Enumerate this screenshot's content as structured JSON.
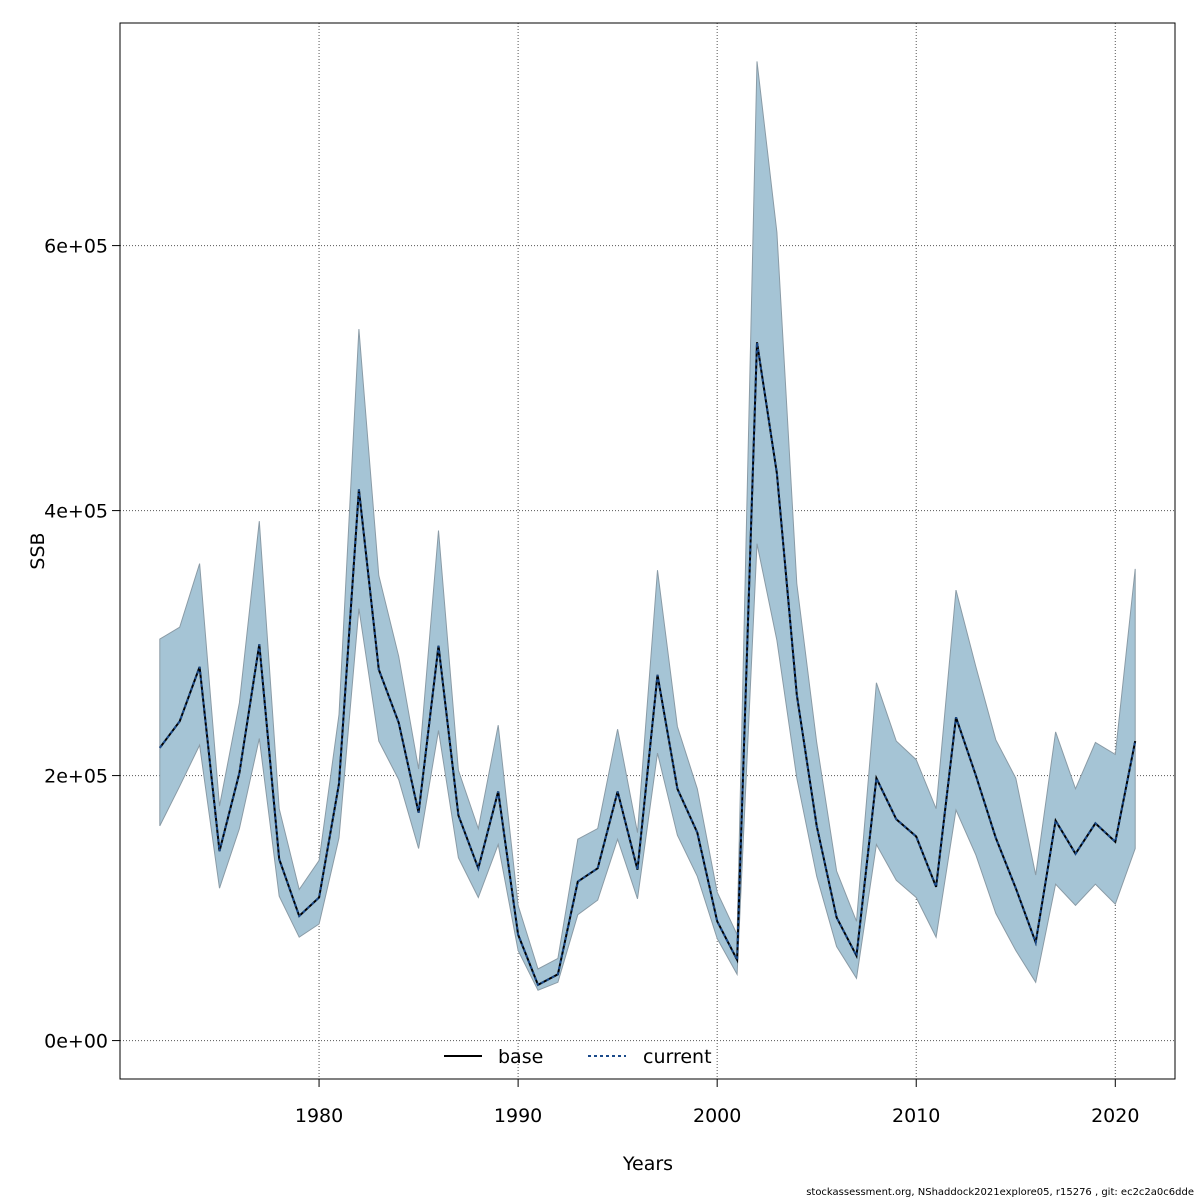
{
  "chart_data": {
    "type": "line",
    "xlabel": "Years",
    "ylabel": "SSB",
    "xlim": [
      1970.0,
      2023.0
    ],
    "ylim": [
      -29000,
      768000
    ],
    "x_ticks": [
      1980,
      1990,
      2000,
      2010,
      2020
    ],
    "x_tick_labels": [
      "1980",
      "1990",
      "2000",
      "2010",
      "2020"
    ],
    "y_ticks": [
      0,
      200000,
      400000,
      600000
    ],
    "y_tick_labels": [
      "0e+00",
      "2e+05",
      "4e+05",
      "6e+05"
    ],
    "grid": true,
    "legend": {
      "position": "bottom-center",
      "entries": [
        "base",
        "current"
      ]
    },
    "colors": {
      "band": "#a5c4d5",
      "band_edge": "#8a9ba6",
      "base": "#000000",
      "current": "#1a4a8a"
    },
    "x": [
      1972,
      1973,
      1974,
      1975,
      1976,
      1977,
      1978,
      1979,
      1980,
      1981,
      1982,
      1983,
      1984,
      1985,
      1986,
      1987,
      1988,
      1989,
      1990,
      1991,
      1992,
      1993,
      1994,
      1995,
      1996,
      1997,
      1998,
      1999,
      2000,
      2001,
      2002,
      2003,
      2004,
      2005,
      2006,
      2007,
      2008,
      2009,
      2010,
      2011,
      2012,
      2013,
      2014,
      2015,
      2016,
      2017,
      2018,
      2019,
      2020,
      2021
    ],
    "series": [
      {
        "name": "base",
        "values": [
          221000,
          241000,
          282000,
          143000,
          202000,
          299000,
          137000,
          94000,
          108000,
          194000,
          416000,
          280000,
          240000,
          172000,
          298000,
          170000,
          130000,
          188000,
          80000,
          42000,
          50000,
          120000,
          130000,
          188000,
          129000,
          276000,
          190000,
          157000,
          90000,
          61000,
          527000,
          428000,
          261000,
          162000,
          93000,
          64000,
          198000,
          167000,
          154000,
          116000,
          244000,
          200000,
          153000,
          115000,
          74000,
          166000,
          141000,
          164000,
          150000,
          226000
        ]
      },
      {
        "name": "current",
        "values": [
          221000,
          241000,
          282000,
          143000,
          202000,
          299000,
          137000,
          94000,
          108000,
          194000,
          416000,
          280000,
          240000,
          172000,
          298000,
          170000,
          130000,
          188000,
          80000,
          42000,
          50000,
          120000,
          130000,
          188000,
          129000,
          276000,
          190000,
          157000,
          90000,
          61000,
          527000,
          428000,
          261000,
          162000,
          93000,
          64000,
          198000,
          167000,
          154000,
          116000,
          244000,
          200000,
          153000,
          115000,
          74000,
          166000,
          141000,
          164000,
          150000,
          226000
        ]
      }
    ],
    "band": {
      "lower": [
        162000,
        192000,
        223000,
        115000,
        160000,
        228000,
        109000,
        78000,
        88000,
        153000,
        326000,
        226000,
        197000,
        145000,
        234000,
        138000,
        108000,
        148000,
        68000,
        38000,
        44000,
        95000,
        106000,
        152000,
        107000,
        217000,
        155000,
        124000,
        77000,
        50000,
        375000,
        302000,
        198000,
        124000,
        71000,
        47000,
        148000,
        121000,
        108000,
        78000,
        174000,
        140000,
        96000,
        68000,
        44000,
        118000,
        102000,
        118000,
        103000,
        145000
      ],
      "upper": [
        303000,
        312000,
        360000,
        177000,
        255000,
        392000,
        175000,
        114000,
        136000,
        246000,
        537000,
        351000,
        290000,
        205000,
        385000,
        204000,
        160000,
        238000,
        102000,
        54000,
        62000,
        152000,
        160000,
        235000,
        157000,
        355000,
        237000,
        190000,
        112000,
        80000,
        739000,
        610000,
        345000,
        225000,
        128000,
        90000,
        270000,
        226000,
        212000,
        175000,
        340000,
        282000,
        227000,
        198000,
        125000,
        233000,
        190000,
        225000,
        216000,
        356000
      ]
    }
  },
  "footer": "stockassessment.org, NShaddock2021explore05, r15276 , git: ec2c2a0c6dde"
}
